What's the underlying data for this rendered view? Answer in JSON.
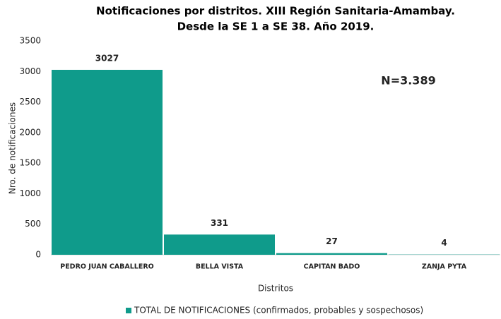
{
  "chart_data": {
    "type": "bar",
    "title": [
      "Notificaciones por distritos. XIII Región Sanitaria-Amambay.",
      "Desde la SE 1 a SE 38. Año 2019."
    ],
    "categories": [
      "PEDRO JUAN CABALLERO",
      "BELLA VISTA",
      "CAPITAN BADO",
      "ZANJA PYTA"
    ],
    "series": [
      {
        "name": "TOTAL DE NOTIFICACIONES (confirmados, probables y sospechosos)",
        "color": "#0f9b8b",
        "values": [
          3027,
          331,
          27,
          4
        ]
      }
    ],
    "ylim": [
      0,
      3500
    ],
    "yticks": [
      0,
      500,
      1000,
      1500,
      2000,
      2500,
      3000,
      3500
    ],
    "y_label": "Nro. de notificaciones",
    "x_label": "Distritos",
    "annotation": "N=3.389",
    "grid": false,
    "legend": "bottom"
  }
}
